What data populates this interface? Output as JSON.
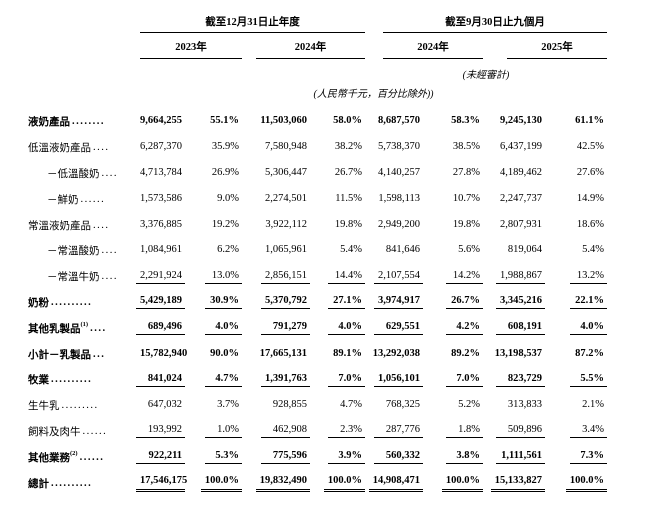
{
  "header": {
    "groups": [
      {
        "title": "截至12月31日止年度",
        "years": [
          "2023年",
          "2024年"
        ]
      },
      {
        "title": "截至9月30日止九個月",
        "years": [
          "2024年",
          "2025年"
        ]
      }
    ],
    "unaudited": "(未經審計)",
    "unit_note": "(人民幣千元，百分比除外))"
  },
  "rows": [
    {
      "label": "液奶產品",
      "sup": "",
      "dots": "........",
      "indent": false,
      "bold": true,
      "rule": "none",
      "values": [
        "9,664,255",
        "55.1%",
        "11,503,060",
        "58.0%",
        "8,687,570",
        "58.3%",
        "9,245,130",
        "61.1%"
      ]
    },
    {
      "label": "低溫液奶產品",
      "sup": "",
      "dots": "....",
      "indent": false,
      "bold": false,
      "rule": "none",
      "values": [
        "6,287,370",
        "35.9%",
        "7,580,948",
        "38.2%",
        "5,738,370",
        "38.5%",
        "6,437,199",
        "42.5%"
      ]
    },
    {
      "label": "－低溫酸奶",
      "sup": "",
      "dots": "....",
      "indent": true,
      "bold": false,
      "rule": "none",
      "values": [
        "4,713,784",
        "26.9%",
        "5,306,447",
        "26.7%",
        "4,140,257",
        "27.8%",
        "4,189,462",
        "27.6%"
      ]
    },
    {
      "label": "－鮮奶",
      "sup": "",
      "dots": " ......",
      "indent": true,
      "bold": false,
      "rule": "none",
      "values": [
        "1,573,586",
        "9.0%",
        "2,274,501",
        "11.5%",
        "1,598,113",
        "10.7%",
        "2,247,737",
        "14.9%"
      ]
    },
    {
      "label": "常溫液奶產品",
      "sup": "",
      "dots": "....",
      "indent": false,
      "bold": false,
      "rule": "none",
      "values": [
        "3,376,885",
        "19.2%",
        "3,922,112",
        "19.8%",
        "2,949,200",
        "19.8%",
        "2,807,931",
        "18.6%"
      ]
    },
    {
      "label": "－常溫酸奶",
      "sup": "",
      "dots": "....",
      "indent": true,
      "bold": false,
      "rule": "none",
      "values": [
        "1,084,961",
        "6.2%",
        "1,065,961",
        "5.4%",
        "841,646",
        "5.6%",
        "819,064",
        "5.4%"
      ]
    },
    {
      "label": "－常溫牛奶",
      "sup": "",
      "dots": "....",
      "indent": true,
      "bold": false,
      "rule": "single",
      "values": [
        "2,291,924",
        "13.0%",
        "2,856,151",
        "14.4%",
        "2,107,554",
        "14.2%",
        "1,988,867",
        "13.2%"
      ]
    },
    {
      "label": "奶粉",
      "sup": "",
      "dots": " ..........",
      "indent": false,
      "bold": true,
      "rule": "single",
      "values": [
        "5,429,189",
        "30.9%",
        "5,370,792",
        "27.1%",
        "3,974,917",
        "26.7%",
        "3,345,216",
        "22.1%"
      ]
    },
    {
      "label": "其他乳製品",
      "sup": "(1)",
      "dots": " ....",
      "indent": false,
      "bold": true,
      "rule": "single",
      "values": [
        "689,496",
        "4.0%",
        "791,279",
        "4.0%",
        "629,551",
        "4.2%",
        "608,191",
        "4.0%"
      ]
    },
    {
      "label": "小計－乳製品",
      "sup": "",
      "dots": " ...",
      "indent": false,
      "bold": true,
      "rule": "none",
      "values": [
        "15,782,940",
        "90.0%",
        "17,665,131",
        "89.1%",
        "13,292,038",
        "89.2%",
        "13,198,537",
        "87.2%"
      ]
    },
    {
      "label": "牧業",
      "sup": "",
      "dots": " ..........",
      "indent": false,
      "bold": true,
      "rule": "single",
      "values": [
        "841,024",
        "4.7%",
        "1,391,763",
        "7.0%",
        "1,056,101",
        "7.0%",
        "823,729",
        "5.5%"
      ]
    },
    {
      "label": "生牛乳",
      "sup": "",
      "dots": " .........",
      "indent": false,
      "bold": false,
      "rule": "none",
      "values": [
        "647,032",
        "3.7%",
        "928,855",
        "4.7%",
        "768,325",
        "5.2%",
        "313,833",
        "2.1%"
      ]
    },
    {
      "label": "飼料及肉牛",
      "sup": "",
      "dots": "......",
      "indent": false,
      "bold": false,
      "rule": "single",
      "values": [
        "193,992",
        "1.0%",
        "462,908",
        "2.3%",
        "287,776",
        "1.8%",
        "509,896",
        "3.4%"
      ]
    },
    {
      "label": "其他業務",
      "sup": "(2)",
      "dots": " ......",
      "indent": false,
      "bold": true,
      "rule": "single",
      "values": [
        "922,211",
        "5.3%",
        "775,596",
        "3.9%",
        "560,332",
        "3.8%",
        "1,111,561",
        "7.3%"
      ]
    },
    {
      "label": "總計",
      "sup": "",
      "dots": " ..........",
      "indent": false,
      "bold": true,
      "rule": "double",
      "values": [
        "17,546,175",
        "100.0%",
        "19,832,490",
        "100.0%",
        "14,908,471",
        "100.0%",
        "15,133,827",
        "100.0%"
      ]
    }
  ]
}
